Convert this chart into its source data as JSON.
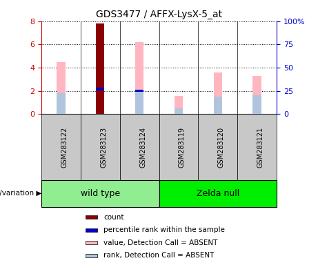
{
  "title": "GDS3477 / AFFX-LysX-5_at",
  "samples": [
    "GSM283122",
    "GSM283123",
    "GSM283124",
    "GSM283119",
    "GSM283120",
    "GSM283121"
  ],
  "count_values": [
    0,
    7.8,
    0,
    0,
    0,
    0
  ],
  "percentile_rank_values": [
    0,
    2.15,
    2.0,
    0,
    0,
    0
  ],
  "value_absent": [
    4.5,
    0,
    6.2,
    1.55,
    3.6,
    3.3
  ],
  "rank_absent": [
    1.8,
    0,
    2.0,
    0.5,
    1.5,
    1.6
  ],
  "ylim_left": [
    0,
    8
  ],
  "ylim_right": [
    0,
    100
  ],
  "yticks_left": [
    0,
    2,
    4,
    6,
    8
  ],
  "yticks_right": [
    0,
    25,
    50,
    75,
    100
  ],
  "ytick_labels_right": [
    "0",
    "25",
    "50",
    "75",
    "100%"
  ],
  "groups": [
    {
      "label": "wild type",
      "start": 0,
      "end": 3,
      "color": "#90EE90"
    },
    {
      "label": "Zelda null",
      "start": 3,
      "end": 6,
      "color": "#00EE00"
    }
  ],
  "count_color": "#8B0000",
  "percentile_color": "#0000CC",
  "value_absent_color": "#FFB6C1",
  "rank_absent_color": "#B0C4DE",
  "legend": [
    {
      "label": "count",
      "color": "#8B0000"
    },
    {
      "label": "percentile rank within the sample",
      "color": "#0000CC"
    },
    {
      "label": "value, Detection Call = ABSENT",
      "color": "#FFB6C1"
    },
    {
      "label": "rank, Detection Call = ABSENT",
      "color": "#B0C4DE"
    }
  ],
  "tick_label_color_left": "#CC0000",
  "tick_label_color_right": "#0000CC",
  "xlabel_area_color": "#C8C8C8"
}
